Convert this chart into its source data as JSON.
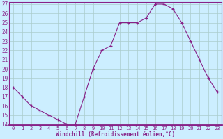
{
  "x": [
    0,
    1,
    2,
    3,
    4,
    5,
    6,
    7,
    8,
    9,
    10,
    11,
    12,
    13,
    14,
    15,
    16,
    17,
    18,
    19,
    20,
    21,
    22,
    23
  ],
  "y": [
    18,
    17,
    16,
    15.5,
    15,
    14.5,
    14,
    14,
    17,
    20,
    22,
    22.5,
    25,
    25,
    25,
    25.5,
    27,
    27,
    26.5,
    25,
    23,
    21,
    19,
    17.5
  ],
  "line_color": "#882288",
  "marker": "+",
  "marker_color": "#882288",
  "bg_color": "#cceeff",
  "grid_color": "#aacccc",
  "xlabel": "Windchill (Refroidissement éolien,°C)",
  "xlabel_color": "#882288",
  "tick_color": "#882288",
  "spine_color": "#882288",
  "ylim": [
    14,
    27
  ],
  "yticks": [
    14,
    15,
    16,
    17,
    18,
    19,
    20,
    21,
    22,
    23,
    24,
    25,
    26,
    27
  ],
  "xlim_min": -0.5,
  "xlim_max": 23.5,
  "xticks": [
    0,
    1,
    2,
    3,
    4,
    5,
    6,
    7,
    8,
    9,
    10,
    11,
    12,
    13,
    14,
    15,
    16,
    17,
    18,
    19,
    20,
    21,
    22,
    23
  ]
}
